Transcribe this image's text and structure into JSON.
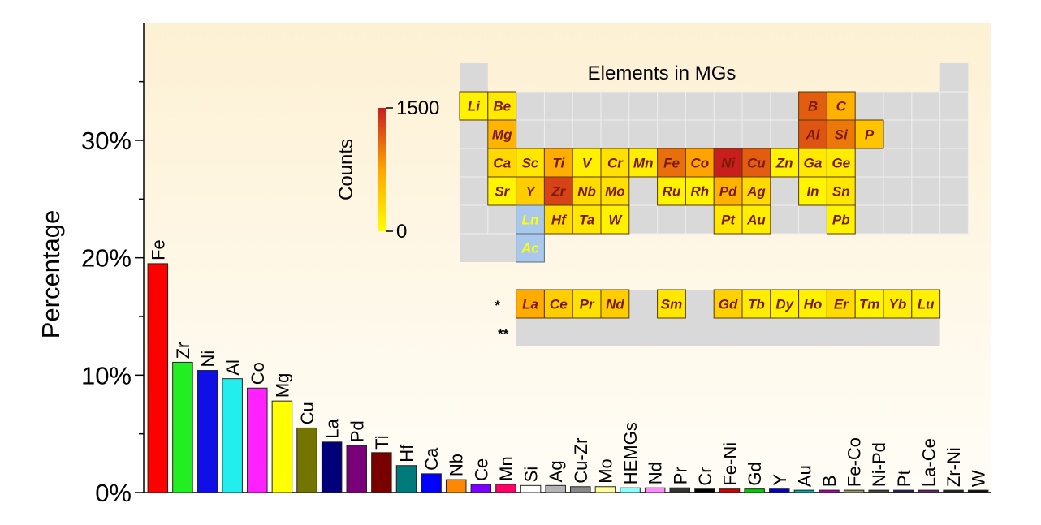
{
  "chart_data": {
    "type": "bar",
    "ylabel": "Percentage",
    "xlabel": "",
    "ylim": [
      0,
      0.4
    ],
    "yticks": [
      0,
      0.1,
      0.2,
      0.3
    ],
    "ytick_labels": [
      "0%",
      "10%",
      "20%",
      "30%"
    ],
    "categories": [
      "Fe",
      "Zr",
      "Ni",
      "Al",
      "Co",
      "Mg",
      "Cu",
      "La",
      "Pd",
      "Ti",
      "Hf",
      "Ca",
      "Nb",
      "Ce",
      "Mn",
      "Si",
      "Ag",
      "Cu-Zr",
      "Mo",
      "HEMGs",
      "Nd",
      "Pr",
      "Cr",
      "Fe-Ni",
      "Gd",
      "Y",
      "Au",
      "B",
      "Fe-Co",
      "Ni-Pd",
      "Pt",
      "La-Ce",
      "Zr-Ni",
      "W"
    ],
    "values": [
      0.195,
      0.111,
      0.104,
      0.097,
      0.089,
      0.078,
      0.055,
      0.043,
      0.04,
      0.034,
      0.023,
      0.016,
      0.011,
      0.007,
      0.007,
      0.006,
      0.006,
      0.005,
      0.005,
      0.004,
      0.004,
      0.004,
      0.003,
      0.003,
      0.003,
      0.003,
      0.002,
      0.002,
      0.002,
      0.002,
      0.002,
      0.002,
      0.002,
      0.002
    ],
    "colors": [
      "#ff0000",
      "#22ee22",
      "#1010e6",
      "#22eeee",
      "#ff22ff",
      "#ffff00",
      "#747400",
      "#00007a",
      "#7a007a",
      "#7a0000",
      "#007a7a",
      "#0000ff",
      "#ff8800",
      "#7a00ff",
      "#ff0066",
      "#ffffff",
      "#b4b4b4",
      "#888888",
      "#ffff99",
      "#88ffff",
      "#ff88ff",
      "#333333",
      "#000000",
      "#cc0000",
      "#00cc00",
      "#0000cc",
      "#00aaaa",
      "#aa00aa",
      "#999966",
      "#444444",
      "#222266",
      "#662266",
      "#222222",
      "#111111"
    ],
    "inset": {
      "title": "Elements in MGs",
      "colorbar_label": "Counts",
      "colorbar_max_label": "1500",
      "colorbar_min_label": "0",
      "colorbar_range": [
        0,
        1500
      ],
      "colorbar_colors": [
        "#ffff00",
        "#ffa500",
        "#c81e1e"
      ],
      "lanthanide_marker": "*",
      "actinide_marker": "**",
      "elements": [
        {
          "symbol": "Li",
          "row": 1,
          "col": 1,
          "count": 120
        },
        {
          "symbol": "Be",
          "row": 1,
          "col": 2,
          "count": 180
        },
        {
          "symbol": "B",
          "row": 1,
          "col": 13,
          "count": 1150
        },
        {
          "symbol": "C",
          "row": 1,
          "col": 14,
          "count": 650
        },
        {
          "symbol": "Mg",
          "row": 2,
          "col": 2,
          "count": 620
        },
        {
          "symbol": "Al",
          "row": 2,
          "col": 13,
          "count": 1200
        },
        {
          "symbol": "Si",
          "row": 2,
          "col": 14,
          "count": 1000
        },
        {
          "symbol": "P",
          "row": 2,
          "col": 15,
          "count": 500
        },
        {
          "symbol": "Ca",
          "row": 3,
          "col": 2,
          "count": 320
        },
        {
          "symbol": "Sc",
          "row": 3,
          "col": 3,
          "count": 200
        },
        {
          "symbol": "Ti",
          "row": 3,
          "col": 4,
          "count": 680
        },
        {
          "symbol": "V",
          "row": 3,
          "col": 5,
          "count": 120
        },
        {
          "symbol": "Cr",
          "row": 3,
          "col": 6,
          "count": 260
        },
        {
          "symbol": "Mn",
          "row": 3,
          "col": 7,
          "count": 140
        },
        {
          "symbol": "Fe",
          "row": 3,
          "col": 8,
          "count": 1050
        },
        {
          "symbol": "Co",
          "row": 3,
          "col": 9,
          "count": 760
        },
        {
          "symbol": "Ni",
          "row": 3,
          "col": 10,
          "count": 1500
        },
        {
          "symbol": "Cu",
          "row": 3,
          "col": 11,
          "count": 1150
        },
        {
          "symbol": "Zn",
          "row": 3,
          "col": 12,
          "count": 100
        },
        {
          "symbol": "Ga",
          "row": 3,
          "col": 13,
          "count": 180
        },
        {
          "symbol": "Ge",
          "row": 3,
          "col": 14,
          "count": 160
        },
        {
          "symbol": "Sr",
          "row": 4,
          "col": 2,
          "count": 80
        },
        {
          "symbol": "Y",
          "row": 4,
          "col": 3,
          "count": 420
        },
        {
          "symbol": "Zr",
          "row": 4,
          "col": 4,
          "count": 1300
        },
        {
          "symbol": "Nb",
          "row": 4,
          "col": 5,
          "count": 300
        },
        {
          "symbol": "Mo",
          "row": 4,
          "col": 6,
          "count": 260
        },
        {
          "symbol": "Ru",
          "row": 4,
          "col": 8,
          "count": 100
        },
        {
          "symbol": "Rh",
          "row": 4,
          "col": 9,
          "count": 90
        },
        {
          "symbol": "Pd",
          "row": 4,
          "col": 10,
          "count": 650
        },
        {
          "symbol": "Ag",
          "row": 4,
          "col": 11,
          "count": 320
        },
        {
          "symbol": "In",
          "row": 4,
          "col": 13,
          "count": 80
        },
        {
          "symbol": "Sn",
          "row": 4,
          "col": 14,
          "count": 200
        },
        {
          "symbol": "Hf",
          "row": 5,
          "col": 4,
          "count": 300
        },
        {
          "symbol": "Ta",
          "row": 5,
          "col": 5,
          "count": 200
        },
        {
          "symbol": "W",
          "row": 5,
          "col": 6,
          "count": 120
        },
        {
          "symbol": "Pt",
          "row": 5,
          "col": 10,
          "count": 200
        },
        {
          "symbol": "Au",
          "row": 5,
          "col": 11,
          "count": 140
        },
        {
          "symbol": "Pb",
          "row": 5,
          "col": 14,
          "count": 90
        },
        {
          "symbol": "La",
          "row": 7,
          "col": 3,
          "count": 700
        },
        {
          "symbol": "Ce",
          "row": 7,
          "col": 4,
          "count": 420
        },
        {
          "symbol": "Pr",
          "row": 7,
          "col": 5,
          "count": 250
        },
        {
          "symbol": "Nd",
          "row": 7,
          "col": 6,
          "count": 420
        },
        {
          "symbol": "Sm",
          "row": 7,
          "col": 8,
          "count": 200
        },
        {
          "symbol": "Gd",
          "row": 7,
          "col": 10,
          "count": 380
        },
        {
          "symbol": "Tb",
          "row": 7,
          "col": 11,
          "count": 160
        },
        {
          "symbol": "Dy",
          "row": 7,
          "col": 12,
          "count": 120
        },
        {
          "symbol": "Ho",
          "row": 7,
          "col": 13,
          "count": 120
        },
        {
          "symbol": "Er",
          "row": 7,
          "col": 14,
          "count": 300
        },
        {
          "symbol": "Tm",
          "row": 7,
          "col": 15,
          "count": 100
        },
        {
          "symbol": "Yb",
          "row": 7,
          "col": 16,
          "count": 150
        },
        {
          "symbol": "Lu",
          "row": 7,
          "col": 17,
          "count": 120
        }
      ],
      "series_labels": [
        {
          "symbol": "Ln",
          "row": 5,
          "col": 3,
          "color": "#a9c8ec",
          "text_color": "#ffff00"
        },
        {
          "symbol": "Ac",
          "row": 6,
          "col": 3,
          "color": "#a9c8ec",
          "text_color": "#ffff00"
        }
      ]
    }
  }
}
